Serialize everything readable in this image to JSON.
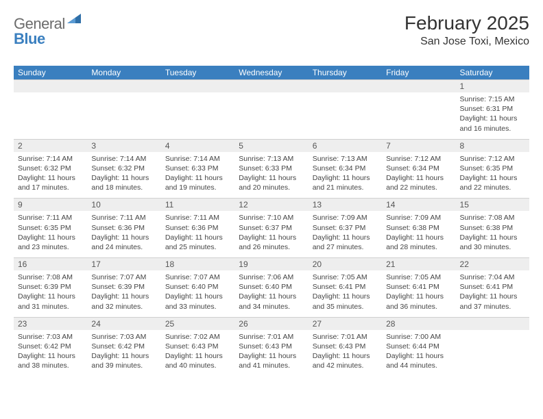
{
  "brand": {
    "name_part1": "General",
    "name_part2": "Blue",
    "icon_color": "#2f6fa8"
  },
  "header": {
    "title": "February 2025",
    "location": "San Jose Toxi, Mexico"
  },
  "colors": {
    "header_bg": "#3a7fbf",
    "header_fg": "#ffffff",
    "daynum_bg": "#eeeeee",
    "text": "#333333"
  },
  "weekdays": [
    "Sunday",
    "Monday",
    "Tuesday",
    "Wednesday",
    "Thursday",
    "Friday",
    "Saturday"
  ],
  "weeks": [
    {
      "nums": [
        "",
        "",
        "",
        "",
        "",
        "",
        "1"
      ],
      "cells": [
        null,
        null,
        null,
        null,
        null,
        null,
        {
          "sunrise": "7:15 AM",
          "sunset": "6:31 PM",
          "dlh": "11",
          "dlm": "16"
        }
      ]
    },
    {
      "nums": [
        "2",
        "3",
        "4",
        "5",
        "6",
        "7",
        "8"
      ],
      "cells": [
        {
          "sunrise": "7:14 AM",
          "sunset": "6:32 PM",
          "dlh": "11",
          "dlm": "17"
        },
        {
          "sunrise": "7:14 AM",
          "sunset": "6:32 PM",
          "dlh": "11",
          "dlm": "18"
        },
        {
          "sunrise": "7:14 AM",
          "sunset": "6:33 PM",
          "dlh": "11",
          "dlm": "19"
        },
        {
          "sunrise": "7:13 AM",
          "sunset": "6:33 PM",
          "dlh": "11",
          "dlm": "20"
        },
        {
          "sunrise": "7:13 AM",
          "sunset": "6:34 PM",
          "dlh": "11",
          "dlm": "21"
        },
        {
          "sunrise": "7:12 AM",
          "sunset": "6:34 PM",
          "dlh": "11",
          "dlm": "22"
        },
        {
          "sunrise": "7:12 AM",
          "sunset": "6:35 PM",
          "dlh": "11",
          "dlm": "22"
        }
      ]
    },
    {
      "nums": [
        "9",
        "10",
        "11",
        "12",
        "13",
        "14",
        "15"
      ],
      "cells": [
        {
          "sunrise": "7:11 AM",
          "sunset": "6:35 PM",
          "dlh": "11",
          "dlm": "23"
        },
        {
          "sunrise": "7:11 AM",
          "sunset": "6:36 PM",
          "dlh": "11",
          "dlm": "24"
        },
        {
          "sunrise": "7:11 AM",
          "sunset": "6:36 PM",
          "dlh": "11",
          "dlm": "25"
        },
        {
          "sunrise": "7:10 AM",
          "sunset": "6:37 PM",
          "dlh": "11",
          "dlm": "26"
        },
        {
          "sunrise": "7:09 AM",
          "sunset": "6:37 PM",
          "dlh": "11",
          "dlm": "27"
        },
        {
          "sunrise": "7:09 AM",
          "sunset": "6:38 PM",
          "dlh": "11",
          "dlm": "28"
        },
        {
          "sunrise": "7:08 AM",
          "sunset": "6:38 PM",
          "dlh": "11",
          "dlm": "30"
        }
      ]
    },
    {
      "nums": [
        "16",
        "17",
        "18",
        "19",
        "20",
        "21",
        "22"
      ],
      "cells": [
        {
          "sunrise": "7:08 AM",
          "sunset": "6:39 PM",
          "dlh": "11",
          "dlm": "31"
        },
        {
          "sunrise": "7:07 AM",
          "sunset": "6:39 PM",
          "dlh": "11",
          "dlm": "32"
        },
        {
          "sunrise": "7:07 AM",
          "sunset": "6:40 PM",
          "dlh": "11",
          "dlm": "33"
        },
        {
          "sunrise": "7:06 AM",
          "sunset": "6:40 PM",
          "dlh": "11",
          "dlm": "34"
        },
        {
          "sunrise": "7:05 AM",
          "sunset": "6:41 PM",
          "dlh": "11",
          "dlm": "35"
        },
        {
          "sunrise": "7:05 AM",
          "sunset": "6:41 PM",
          "dlh": "11",
          "dlm": "36"
        },
        {
          "sunrise": "7:04 AM",
          "sunset": "6:41 PM",
          "dlh": "11",
          "dlm": "37"
        }
      ]
    },
    {
      "nums": [
        "23",
        "24",
        "25",
        "26",
        "27",
        "28",
        ""
      ],
      "cells": [
        {
          "sunrise": "7:03 AM",
          "sunset": "6:42 PM",
          "dlh": "11",
          "dlm": "38"
        },
        {
          "sunrise": "7:03 AM",
          "sunset": "6:42 PM",
          "dlh": "11",
          "dlm": "39"
        },
        {
          "sunrise": "7:02 AM",
          "sunset": "6:43 PM",
          "dlh": "11",
          "dlm": "40"
        },
        {
          "sunrise": "7:01 AM",
          "sunset": "6:43 PM",
          "dlh": "11",
          "dlm": "41"
        },
        {
          "sunrise": "7:01 AM",
          "sunset": "6:43 PM",
          "dlh": "11",
          "dlm": "42"
        },
        {
          "sunrise": "7:00 AM",
          "sunset": "6:44 PM",
          "dlh": "11",
          "dlm": "44"
        },
        null
      ]
    }
  ],
  "labels": {
    "sunrise": "Sunrise: ",
    "sunset": "Sunset: ",
    "daylight_pre": "Daylight: ",
    "hours_conj": " hours and ",
    "minutes_suffix": " minutes."
  }
}
